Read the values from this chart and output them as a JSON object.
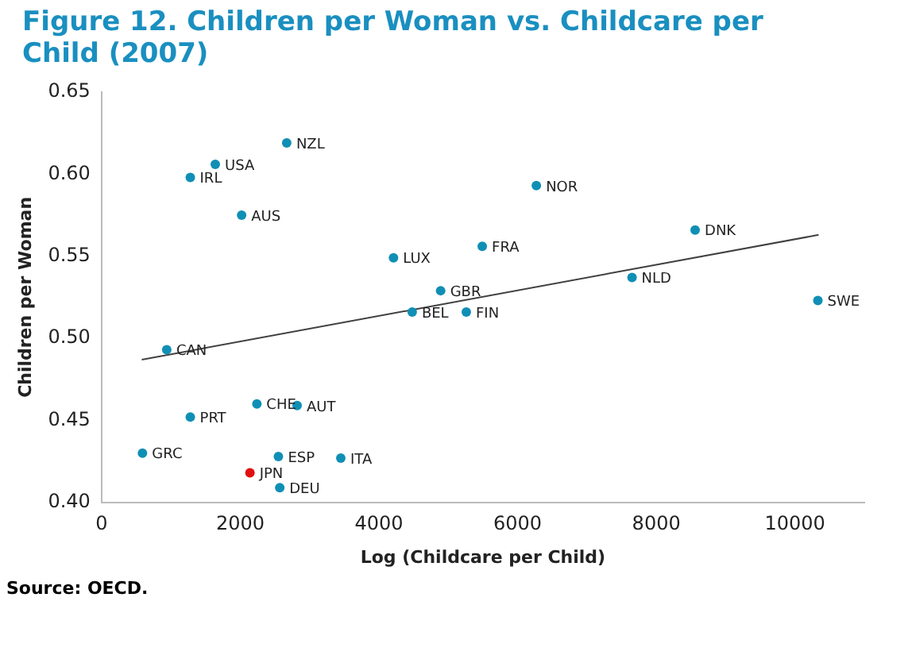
{
  "chart_data": {
    "type": "scatter",
    "title": "Figure 12. Children per Woman vs. Childcare per Child (2007)",
    "xlabel": "Log (Childcare per Child)",
    "ylabel": "Children per Woman",
    "marker": "circle",
    "grid": false,
    "legend": false,
    "xlim": [
      0,
      11000
    ],
    "xticks": [
      0,
      2000,
      4000,
      6000,
      8000,
      10000
    ],
    "ylim": [
      0.4,
      0.65
    ],
    "yticks": [
      {
        "value": 0.4,
        "label": "0.40"
      },
      {
        "value": 0.45,
        "label": "0.45"
      },
      {
        "value": 0.5,
        "label": "0.50"
      },
      {
        "value": 0.55,
        "label": "0.55"
      },
      {
        "value": 0.6,
        "label": "0.60"
      },
      {
        "value": 0.65,
        "label": "0.65"
      }
    ],
    "series": [
      {
        "type": "scatter",
        "x": [
          2670,
          1640,
          1280,
          2020,
          4210,
          4890,
          4480,
          5260,
          940,
          6270,
          5490,
          8560,
          7650,
          10330,
          2240,
          2820,
          1280,
          590,
          2550,
          3450,
          2140,
          2570
        ],
        "values": [
          0.619,
          0.606,
          0.598,
          0.575,
          0.549,
          0.529,
          0.516,
          0.516,
          0.493,
          0.593,
          0.556,
          0.566,
          0.537,
          0.523,
          0.46,
          0.459,
          0.452,
          0.43,
          0.428,
          0.427,
          0.418,
          0.409
        ],
        "colors": [
          "#108fb5",
          "#108fb5",
          "#108fb5",
          "#108fb5",
          "#108fb5",
          "#108fb5",
          "#108fb5",
          "#108fb5",
          "#108fb5",
          "#108fb5",
          "#108fb5",
          "#108fb5",
          "#108fb5",
          "#108fb5",
          "#108fb5",
          "#108fb5",
          "#108fb5",
          "#108fb5",
          "#108fb5",
          "#108fb5",
          "#e01010",
          "#108fb5"
        ]
      },
      {
        "type": "line",
        "x": [
          580,
          10340
        ],
        "values": [
          0.487,
          0.563
        ],
        "color": "#404040",
        "marker": "none"
      }
    ],
    "annotations": [
      {
        "text": "NZL",
        "x": 2670,
        "y": 0.619
      },
      {
        "text": "USA",
        "x": 1640,
        "y": 0.606
      },
      {
        "text": "IRL",
        "x": 1280,
        "y": 0.598
      },
      {
        "text": "AUS",
        "x": 2020,
        "y": 0.575
      },
      {
        "text": "LUX",
        "x": 4210,
        "y": 0.549
      },
      {
        "text": "GBR",
        "x": 4890,
        "y": 0.529
      },
      {
        "text": "BEL",
        "x": 4480,
        "y": 0.516
      },
      {
        "text": "FIN",
        "x": 5260,
        "y": 0.516
      },
      {
        "text": "CAN",
        "x": 940,
        "y": 0.493
      },
      {
        "text": "NOR",
        "x": 6270,
        "y": 0.593
      },
      {
        "text": "FRA",
        "x": 5490,
        "y": 0.556
      },
      {
        "text": "DNK",
        "x": 8560,
        "y": 0.566
      },
      {
        "text": "NLD",
        "x": 7650,
        "y": 0.537
      },
      {
        "text": "SWE",
        "x": 10330,
        "y": 0.523
      },
      {
        "text": "CHE",
        "x": 2240,
        "y": 0.46
      },
      {
        "text": "AUT",
        "x": 2820,
        "y": 0.459
      },
      {
        "text": "PRT",
        "x": 1280,
        "y": 0.452
      },
      {
        "text": "GRC",
        "x": 590,
        "y": 0.43
      },
      {
        "text": "ESP",
        "x": 2550,
        "y": 0.428
      },
      {
        "text": "ITA",
        "x": 3450,
        "y": 0.427
      },
      {
        "text": "JPN",
        "x": 2140,
        "y": 0.418
      },
      {
        "text": "DEU",
        "x": 2570,
        "y": 0.409
      },
      "Source: OECD."
    ]
  }
}
